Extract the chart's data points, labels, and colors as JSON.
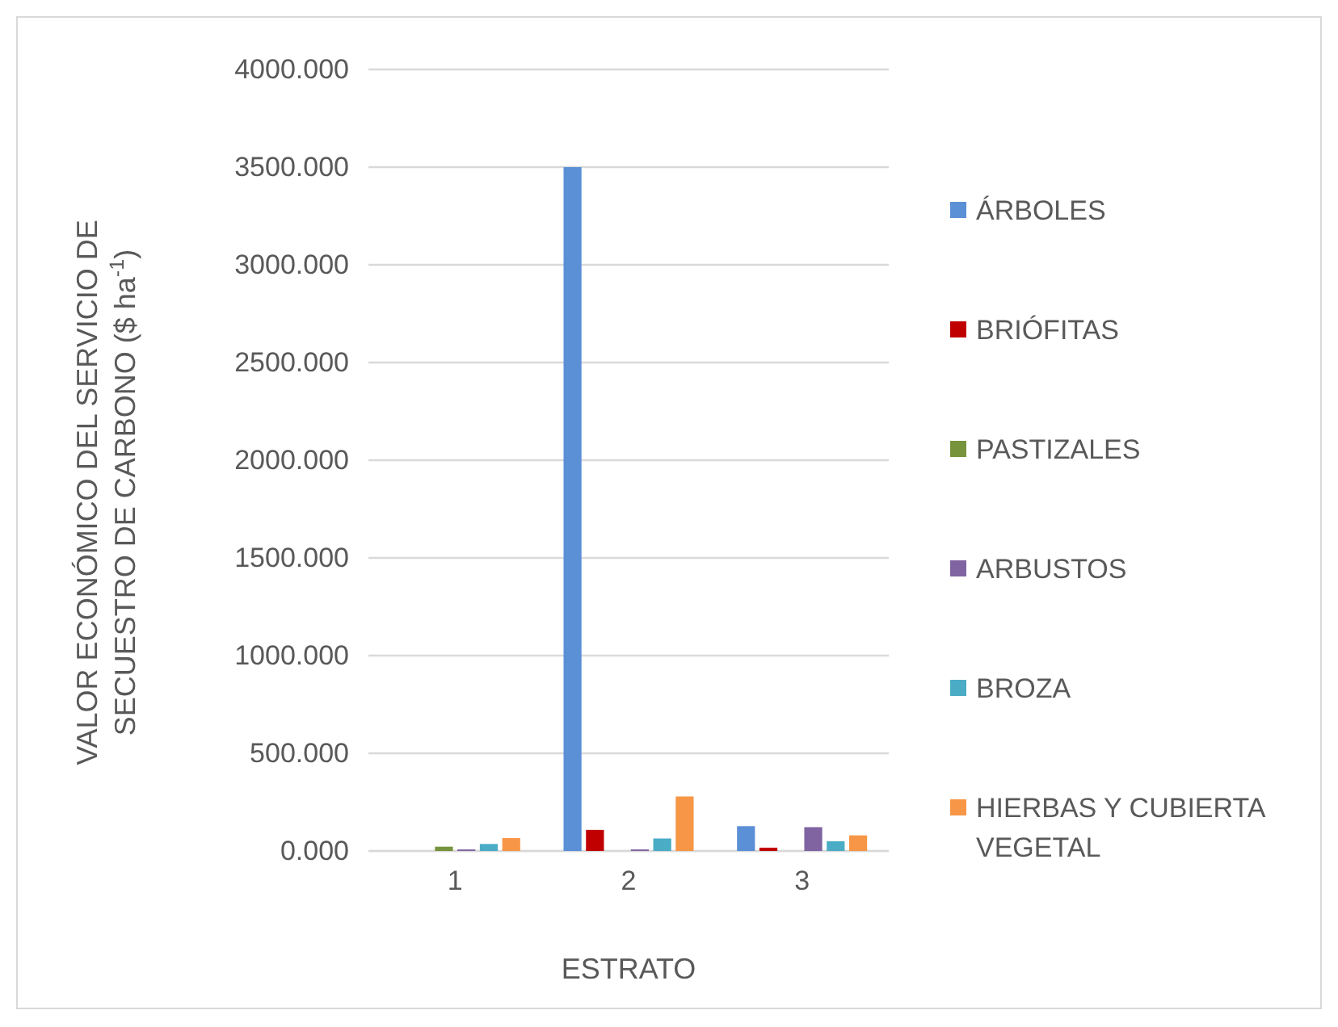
{
  "chart_data": {
    "type": "bar",
    "xlabel": "ESTRATO",
    "ylabel": "VALOR ECONÓMICO DEL SERVICIO DE SECUESTRO DE CARBONO ($ ha$^{-1}$)",
    "categories": [
      "1",
      "2",
      "3"
    ],
    "series": [
      {
        "name": "ÁRBOLES",
        "color": "#5b8fd6",
        "values": [
          0,
          3500,
          127
        ]
      },
      {
        "name": "BRIÓFITAS",
        "color": "#c00000",
        "values": [
          0,
          108,
          17
        ]
      },
      {
        "name": "PASTIZALES",
        "color": "#77933c",
        "values": [
          22,
          0,
          0
        ]
      },
      {
        "name": "ARBUSTOS",
        "color": "#8064a2",
        "values": [
          8,
          8,
          122
        ]
      },
      {
        "name": "BROZA",
        "color": "#4bacc6",
        "values": [
          36,
          64,
          50
        ]
      },
      {
        "name": "HIERBAS Y CUBIERTA VEGETAL",
        "color": "#f79646",
        "values": [
          66,
          279,
          80
        ]
      }
    ],
    "ylim": [
      0,
      4000
    ],
    "yticks": [
      {
        "value": 0,
        "label": "0.000"
      },
      {
        "value": 500,
        "label": "500.000"
      },
      {
        "value": 1000,
        "label": "1000.000"
      },
      {
        "value": 1500,
        "label": "1500.000"
      },
      {
        "value": 2000,
        "label": "2000.000"
      },
      {
        "value": 2500,
        "label": "2500.000"
      },
      {
        "value": 3000,
        "label": "3000.000"
      },
      {
        "value": 3500,
        "label": "3500.000"
      },
      {
        "value": 4000,
        "label": "4000.000"
      }
    ],
    "grid": "y",
    "legend": "right"
  }
}
